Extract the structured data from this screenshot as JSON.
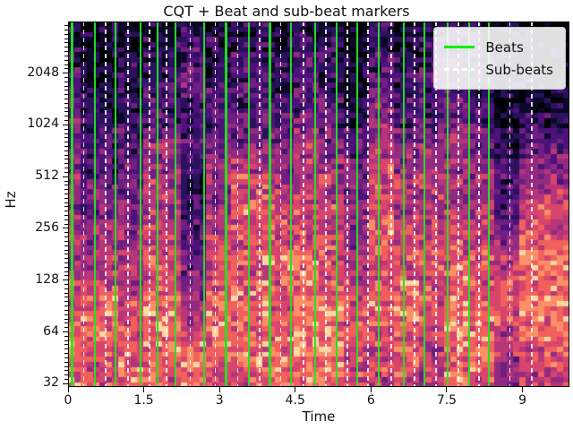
{
  "figure": {
    "title": "CQT + Beat and sub-beat markers"
  },
  "axes": {
    "xlabel": "Time",
    "ylabel": "Hz"
  },
  "legend": {
    "items": [
      {
        "label": "Beats",
        "color": "#00f000",
        "style": "solid"
      },
      {
        "label": "Sub-beats",
        "color": "#ffffff",
        "style": "dashed"
      }
    ]
  },
  "chart_data": {
    "type": "heatmap",
    "title": "CQT + Beat and sub-beat markers",
    "xlabel": "Time",
    "ylabel": "Hz",
    "x_range": [
      0,
      9.93
    ],
    "x_ticks": [
      0,
      1.5,
      3,
      4.5,
      6,
      7.5,
      9
    ],
    "y_scale": "log2",
    "y_range": [
      30.6,
      4090
    ],
    "y_ticks": [
      32,
      64,
      128,
      256,
      512,
      1024,
      2048
    ],
    "colormap": "magma",
    "colormap_stops": [
      "#000004",
      "#0d0829",
      "#2a115c",
      "#4d117b",
      "#6f1f81",
      "#922b80",
      "#b63679",
      "#d8456c",
      "#f2605d",
      "#fb9066",
      "#fdd7a0"
    ],
    "beat_color": "#21e421",
    "subbeat_color": "#ffffff",
    "beats": [
      0.08,
      0.53,
      0.94,
      1.44,
      1.77,
      2.13,
      2.7,
      3.13,
      3.58,
      4.0,
      4.42,
      4.9,
      5.32,
      5.73,
      6.15,
      6.65,
      7.06,
      7.52,
      7.94,
      8.33
    ],
    "sub_beats": [
      0.31,
      0.74,
      1.19,
      1.61,
      1.95,
      2.42,
      2.92,
      3.36,
      3.79,
      4.21,
      4.66,
      5.11,
      5.53,
      5.94,
      6.4,
      6.86,
      7.29,
      7.73,
      8.14,
      8.75,
      9.19
    ],
    "intensity_grid": {
      "rows": 24,
      "cols": 40,
      "t_start": 0,
      "t_end": 9.93,
      "value_scale": "0=black(min dB) .. 10=pale(max dB), top row = ~4 kHz, bottom row = ~32 Hz",
      "values": [
        "2111111112211222112211002211112211000000",
        "2111112223322222112222112211222211000000",
        "2111222223322333223322113322223322110000",
        "3111222224422333223322113322333322111111",
        "3222223334433333223322114422333322111111",
        "3222223333333333333333225533334433111111",
        "4222333333333444334433225533334433112222",
        "4333334443344444445544336644445544223333",
        "5333335553344555556644336655555544224444",
        "5333445552255666556655447755555555225555",
        "5444446662255777666666447766666655335555",
        "5444446662255777667766447766666655336666",
        "5444556662266898777777558866666666337777",
        "5555556663366777777777558877667766447777",
        "6555557773377777777777558877777766558888",
        "6666667774477888888877667777777777669999",
        "6666667774477777888877667777778877668888",
        "7777667775577888778877667788778877778888",
        "7888778885588888779988778888778877779999",
        "7888778886688888779988778888778888778888",
        "8888778887788888889999777788779988668888",
        "8777888888888888889999777788668888667777",
        "8777888888877888888888777777668888557777",
        "8777887778877777888888776677668877556666"
      ]
    }
  }
}
